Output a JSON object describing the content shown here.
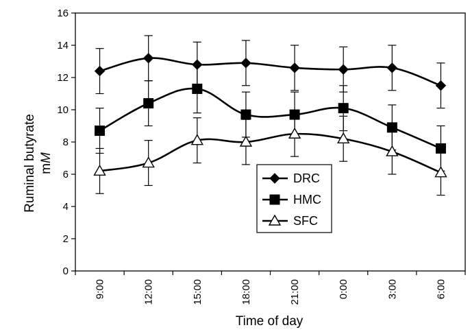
{
  "chart_data": {
    "type": "line",
    "title": "",
    "xlabel": "Time of day",
    "ylabel_line1": "Ruminal butyrate",
    "ylabel_line2_prefix": "m",
    "ylabel_line2_unit": "M",
    "categories": [
      "9:00",
      "12:00",
      "15:00",
      "18:00",
      "21:00",
      "0:00",
      "3:00",
      "6:00"
    ],
    "ylim": [
      0,
      16
    ],
    "yticks": [
      "0",
      "2",
      "4",
      "6",
      "8",
      "10",
      "12",
      "14",
      "16"
    ],
    "grid": false,
    "legend_position": "center",
    "series": [
      {
        "name": "DRC",
        "marker": "diamond",
        "values": [
          12.4,
          13.2,
          12.8,
          12.9,
          12.6,
          12.5,
          12.6,
          11.5
        ],
        "error": [
          1.4,
          1.4,
          1.4,
          1.4,
          1.4,
          1.4,
          1.4,
          1.4
        ]
      },
      {
        "name": "HMC",
        "marker": "square",
        "values": [
          8.7,
          10.4,
          11.3,
          9.7,
          9.7,
          10.1,
          8.9,
          7.6
        ],
        "error": [
          1.4,
          1.4,
          1.5,
          1.4,
          1.4,
          1.4,
          1.4,
          1.4
        ]
      },
      {
        "name": "SFC",
        "marker": "triangle",
        "values": [
          6.2,
          6.7,
          8.1,
          8.0,
          8.5,
          8.2,
          7.4,
          6.1
        ],
        "error": [
          1.4,
          1.4,
          1.4,
          1.4,
          1.4,
          1.4,
          1.4,
          1.4
        ]
      }
    ]
  }
}
